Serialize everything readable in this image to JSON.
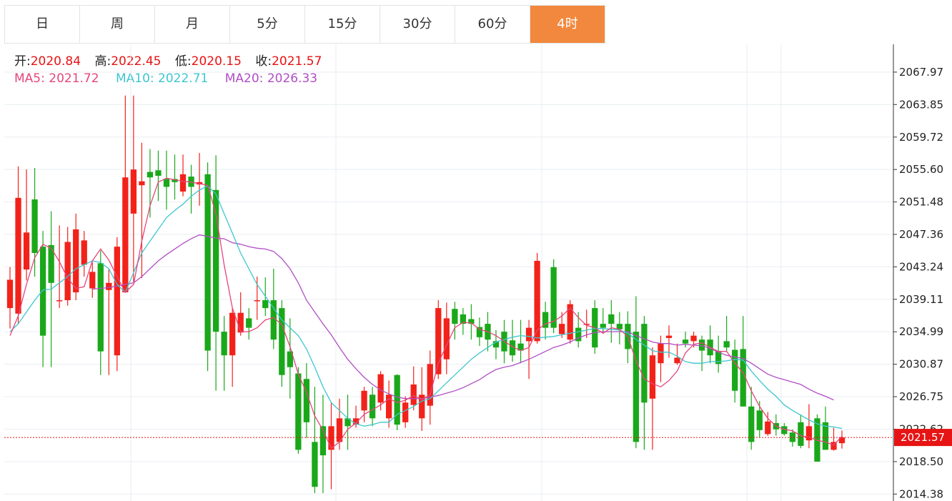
{
  "tabs": [
    {
      "label": "日",
      "active": false
    },
    {
      "label": "周",
      "active": false
    },
    {
      "label": "月",
      "active": false
    },
    {
      "label": "5分",
      "active": false
    },
    {
      "label": "15分",
      "active": false
    },
    {
      "label": "30分",
      "active": false
    },
    {
      "label": "60分",
      "active": false
    },
    {
      "label": "4时",
      "active": true
    }
  ],
  "ohlc_info": {
    "open_label": "开:",
    "open": "2020.84",
    "high_label": "高:",
    "high": "2022.45",
    "low_label": "低:",
    "low": "2020.15",
    "close_label": "收:",
    "close": "2021.57"
  },
  "ma_info": {
    "ma5_label": "MA5:",
    "ma5": "2021.72",
    "ma10_label": "MA10:",
    "ma10": "2022.71",
    "ma20_label": "MA20:",
    "ma20": "2026.33"
  },
  "colors": {
    "up": "#f2221a",
    "down": "#1aa81a",
    "ma5": "#e6457c",
    "ma10": "#3ec6d0",
    "ma20": "#b04fc4",
    "accent": "#f2883d",
    "price_line": "#e61414"
  },
  "chart_data": {
    "type": "candlestick",
    "ylim": [
      2013.5,
      2071.5
    ],
    "y_ticks": [
      "2014.38",
      "2018.50",
      "2022.62",
      "2026.75",
      "2030.87",
      "2034.99",
      "2039.11",
      "2043.24",
      "2047.36",
      "2051.48",
      "2055.60",
      "2059.72",
      "2063.85",
      "2067.97"
    ],
    "last_price": "2021.57",
    "last_price_value": 2021.57,
    "candles": [
      [
        2038.0,
        2041.6,
        2043.2,
        2035.4
      ],
      [
        2037.3,
        2052.0,
        2056.0,
        2036.0
      ],
      [
        2042.9,
        2047.6,
        2055.6,
        2041.5
      ],
      [
        2051.8,
        2045.0,
        2055.8,
        2042.0
      ],
      [
        2045.8,
        2034.5,
        2047.8,
        2030.5
      ],
      [
        2046.0,
        2041.2,
        2050.3,
        2030.5
      ],
      [
        2039.0,
        2039.0,
        2048.5,
        2038.0
      ],
      [
        2039.0,
        2046.4,
        2048.3,
        2038.3
      ],
      [
        2040.0,
        2048.0,
        2050.0,
        2039.0
      ],
      [
        2043.5,
        2046.6,
        2047.8,
        2042.0
      ],
      [
        2040.5,
        2042.6,
        2043.8,
        2039.3
      ],
      [
        2043.7,
        2032.5,
        2045.3,
        2029.5
      ],
      [
        2040.3,
        2041.2,
        2043.0,
        2029.5
      ],
      [
        2032.0,
        2045.8,
        2047.0,
        2030.0
      ],
      [
        2040.0,
        2054.6,
        2065.0,
        2040.0
      ],
      [
        2050.0,
        2055.6,
        2065.0,
        2041.3
      ],
      [
        2053.6,
        2054.1,
        2059.0,
        2041.8
      ],
      [
        2055.3,
        2054.6,
        2058.2,
        2049.5
      ],
      [
        2055.5,
        2054.8,
        2058.0,
        2051.6
      ],
      [
        2054.4,
        2053.4,
        2058.0,
        2050.5
      ],
      [
        2054.4,
        2054.0,
        2057.5,
        2051.8
      ],
      [
        2052.8,
        2055.0,
        2057.5,
        2052.2
      ],
      [
        2054.7,
        2053.4,
        2056.2,
        2050.0
      ],
      [
        2053.7,
        2054.0,
        2057.7,
        2051.0
      ],
      [
        2055.0,
        2032.6,
        2056.5,
        2030.0
      ],
      [
        2053.0,
        2035.0,
        2057.4,
        2027.5
      ],
      [
        2035.0,
        2032.0,
        2037.0,
        2027.5
      ],
      [
        2032.0,
        2037.4,
        2038.0,
        2028.0
      ],
      [
        2034.9,
        2037.4,
        2040.0,
        2034.5
      ],
      [
        2036.7,
        2035.5,
        2038.0,
        2034.0
      ],
      [
        2039.0,
        2039.0,
        2042.0,
        2036.5
      ],
      [
        2039.0,
        2038.0,
        2041.9,
        2037.0
      ],
      [
        2039.0,
        2034.0,
        2043.0,
        2032.8
      ],
      [
        2038.0,
        2029.5,
        2039.0,
        2028.0
      ],
      [
        2032.5,
        2030.5,
        2036.7,
        2026.5
      ],
      [
        2029.7,
        2020.0,
        2030.5,
        2019.5
      ],
      [
        2029.0,
        2023.5,
        2031.0,
        2021.5
      ],
      [
        2021.0,
        2015.3,
        2028.0,
        2014.5
      ],
      [
        2023.0,
        2019.3,
        2027.0,
        2014.5
      ],
      [
        2020.0,
        2023.0,
        2026.0,
        2015.0
      ],
      [
        2021.0,
        2024.0,
        2026.5,
        2020.0
      ],
      [
        2024.0,
        2023.0,
        2027.0,
        2020.0
      ],
      [
        2023.2,
        2024.0,
        2025.6,
        2022.8
      ],
      [
        2025.0,
        2027.5,
        2028.0,
        2023.5
      ],
      [
        2027.0,
        2024.0,
        2028.0,
        2023.0
      ],
      [
        2026.0,
        2029.6,
        2030.0,
        2025.0
      ],
      [
        2024.0,
        2027.0,
        2028.8,
        2022.8
      ],
      [
        2029.5,
        2023.2,
        2029.6,
        2022.5
      ],
      [
        2023.5,
        2026.0,
        2026.8,
        2022.8
      ],
      [
        2025.7,
        2028.3,
        2030.6,
        2025.0
      ],
      [
        2024.0,
        2027.0,
        2030.5,
        2022.4
      ],
      [
        2025.6,
        2030.9,
        2032.6,
        2023.2
      ],
      [
        2029.6,
        2038.0,
        2039.0,
        2029.0
      ],
      [
        2031.5,
        2036.7,
        2038.7,
        2029.6
      ],
      [
        2037.9,
        2036.0,
        2038.8,
        2034.0
      ],
      [
        2037.2,
        2036.0,
        2038.0,
        2034.6
      ],
      [
        2036.6,
        2036.0,
        2038.5,
        2034.0
      ],
      [
        2035.6,
        2034.3,
        2036.8,
        2033.2
      ],
      [
        2036.0,
        2034.0,
        2037.5,
        2032.5
      ],
      [
        2033.8,
        2033.0,
        2035.2,
        2031.5
      ],
      [
        2035.0,
        2032.5,
        2036.5,
        2031.0
      ],
      [
        2033.9,
        2032.0,
        2036.5,
        2031.2
      ],
      [
        2033.5,
        2032.6,
        2036.5,
        2031.0
      ],
      [
        2033.8,
        2035.5,
        2036.5,
        2029.0
      ],
      [
        2033.8,
        2044.0,
        2045.0,
        2033.5
      ],
      [
        2037.5,
        2035.5,
        2038.8,
        2034.0
      ],
      [
        2043.2,
        2035.5,
        2044.2,
        2034.8
      ],
      [
        2034.7,
        2036.0,
        2037.5,
        2034.2
      ],
      [
        2034.0,
        2038.5,
        2039.0,
        2033.5
      ],
      [
        2035.5,
        2033.8,
        2037.5,
        2033.0
      ],
      [
        2036.0,
        2036.0,
        2037.8,
        2034.2
      ],
      [
        2038.0,
        2033.0,
        2039.0,
        2032.2
      ],
      [
        2036.0,
        2035.5,
        2038.0,
        2034.8
      ],
      [
        2037.2,
        2036.0,
        2039.0,
        2033.6
      ],
      [
        2036.0,
        2035.3,
        2037.5,
        2033.4
      ],
      [
        2036.0,
        2032.8,
        2037.6,
        2031.0
      ],
      [
        2035.0,
        2021.0,
        2039.5,
        2020.2
      ],
      [
        2036.0,
        2026.0,
        2037.0,
        2020.0
      ],
      [
        2026.5,
        2032.0,
        2033.0,
        2020.0
      ],
      [
        2031.0,
        2033.5,
        2034.5,
        2028.6
      ],
      [
        2034.2,
        2034.5,
        2035.8,
        2031.7
      ],
      [
        2031.0,
        2031.7,
        2033.5,
        2030.8
      ],
      [
        2034.0,
        2033.5,
        2035.0,
        2033.0
      ],
      [
        2033.8,
        2034.5,
        2035.0,
        2033.0
      ],
      [
        2034.0,
        2032.6,
        2034.5,
        2030.0
      ],
      [
        2034.0,
        2032.0,
        2035.8,
        2031.0
      ],
      [
        2032.5,
        2030.9,
        2034.5,
        2029.8
      ],
      [
        2033.8,
        2033.0,
        2037.0,
        2032.5
      ],
      [
        2032.7,
        2027.5,
        2034.0,
        2026.0
      ],
      [
        2032.8,
        2025.5,
        2037.0,
        2025.5
      ],
      [
        2025.5,
        2021.0,
        2028.0,
        2020.0
      ],
      [
        2025.0,
        2022.5,
        2026.2,
        2021.6
      ],
      [
        2022.0,
        2023.6,
        2024.8,
        2021.8
      ],
      [
        2023.4,
        2022.6,
        2024.5,
        2021.8
      ],
      [
        2023.0,
        2022.0,
        2023.4,
        2021.8
      ],
      [
        2022.2,
        2021.0,
        2022.6,
        2020.4
      ],
      [
        2023.5,
        2020.5,
        2024.5,
        2020.2
      ],
      [
        2021.2,
        2023.0,
        2025.8,
        2020.2
      ],
      [
        2024.0,
        2018.5,
        2024.5,
        2018.5
      ],
      [
        2023.5,
        2020.0,
        2025.5,
        2020.0
      ],
      [
        2020.0,
        2021.0,
        2022.8,
        2019.9
      ],
      [
        2020.84,
        2021.57,
        2022.45,
        2020.15
      ]
    ],
    "ma5": [
      2034.5,
      2037.0,
      2041.0,
      2044.4,
      2046.1,
      2045.6,
      2043.9,
      2041.8,
      2040.5,
      2040.7,
      2044.0,
      2045.5,
      2044.1,
      2042.0,
      2040.0,
      2041.0,
      2046.5,
      2051.0,
      2054.0,
      2054.5,
      2054.3,
      2054.1,
      2054.0,
      2053.8,
      2053.6,
      2050.0,
      2043.5,
      2038.0,
      2035.0,
      2035.0,
      2035.5,
      2036.5,
      2036.8,
      2035.9,
      2033.1,
      2029.6,
      2027.3,
      2024.3,
      2022.5,
      2020.2,
      2021.0,
      2022.6,
      2023.4,
      2024.5,
      2025.1,
      2025.7,
      2026.5,
      2026.0,
      2026.3,
      2026.9,
      2026.4,
      2027.0,
      2031.0,
      2033.3,
      2035.5,
      2036.2,
      2036.1,
      2035.3,
      2035.0,
      2034.5,
      2033.8,
      2033.1,
      2032.6,
      2033.0,
      2035.2,
      2036.0,
      2036.3,
      2037.0,
      2038.0,
      2036.8,
      2035.8,
      2035.5,
      2034.8,
      2035.5,
      2035.3,
      2034.4,
      2031.3,
      2029.0,
      2028.4,
      2028.0,
      2028.8,
      2030.0,
      2032.3,
      2033.4,
      2033.6,
      2033.0,
      2032.5,
      2032.5,
      2031.0,
      2029.8,
      2027.5,
      2025.5,
      2024.0,
      2023.0,
      2022.6,
      2022.4,
      2021.8,
      2021.6,
      2021.2,
      2021.0,
      2020.6,
      2021.72
    ],
    "ma10": [
      2035.0,
      2036.0,
      2037.5,
      2039.0,
      2040.3,
      2040.4,
      2041.2,
      2042.0,
      2043.0,
      2043.5,
      2044.0,
      2043.8,
      2043.0,
      2041.0,
      2040.0,
      2042.5,
      2045.0,
      2046.5,
      2048.0,
      2049.5,
      2050.4,
      2051.2,
      2052.2,
      2053.0,
      2053.5,
      2052.5,
      2050.0,
      2047.5,
      2045.0,
      2043.0,
      2041.0,
      2039.5,
      2038.0,
      2036.5,
      2035.5,
      2034.5,
      2032.8,
      2030.5,
      2028.0,
      2026.0,
      2025.0,
      2024.0,
      2023.3,
      2023.0,
      2023.2,
      2023.5,
      2023.5,
      2024.5,
      2025.0,
      2025.5,
      2026.2,
      2026.5,
      2027.5,
      2028.5,
      2029.5,
      2030.5,
      2031.5,
      2032.3,
      2033.0,
      2033.7,
      2034.0,
      2034.3,
      2034.5,
      2034.4,
      2034.2,
      2034.3,
      2034.4,
      2034.6,
      2034.8,
      2035.0,
      2035.2,
      2035.4,
      2035.4,
      2035.3,
      2035.2,
      2034.8,
      2034.0,
      2033.3,
      2032.6,
      2032.4,
      2032.4,
      2031.9,
      2031.2,
      2031.0,
      2031.0,
      2031.2,
      2031.2,
      2031.3,
      2031.5,
      2031.4,
      2030.0,
      2028.8,
      2027.7,
      2026.8,
      2025.7,
      2025.0,
      2024.4,
      2023.8,
      2023.3,
      2023.0,
      2022.9,
      2022.71
    ],
    "ma20": [
      null,
      null,
      null,
      null,
      null,
      null,
      null,
      null,
      null,
      null,
      2040.4,
      2040.5,
      2040.6,
      2040.8,
      2041.0,
      2041.2,
      2042.0,
      2043.0,
      2044.0,
      2044.8,
      2045.5,
      2046.2,
      2046.8,
      2047.3,
      2047.1,
      2046.9,
      2046.8,
      2046.3,
      2046.1,
      2045.8,
      2045.6,
      2045.5,
      2045.2,
      2044.3,
      2043.0,
      2041.2,
      2039.0,
      2037.5,
      2036.0,
      2034.6,
      2033.0,
      2031.5,
      2030.3,
      2029.2,
      2028.3,
      2027.6,
      2027.1,
      2026.7,
      2026.5,
      2026.5,
      2026.5,
      2026.7,
      2026.9,
      2027.2,
      2027.5,
      2027.9,
      2028.4,
      2028.9,
      2029.6,
      2030.2,
      2030.5,
      2030.7,
      2031.1,
      2031.5,
      2032.0,
      2032.5,
      2033.0,
      2033.3,
      2033.7,
      2034.2,
      2034.6,
      2034.9,
      2035.0,
      2035.0,
      2035.0,
      2035.0,
      2034.5,
      2034.1,
      2033.7,
      2033.5,
      2033.5,
      2033.3,
      2033.4,
      2033.3,
      2033.2,
      2032.9,
      2032.4,
      2032.0,
      2031.8,
      2031.6,
      2031.0,
      2030.3,
      2029.6,
      2029.2,
      2028.9,
      2028.6,
      2028.3,
      2027.7,
      2027.2,
      2026.8,
      2026.33
    ]
  }
}
